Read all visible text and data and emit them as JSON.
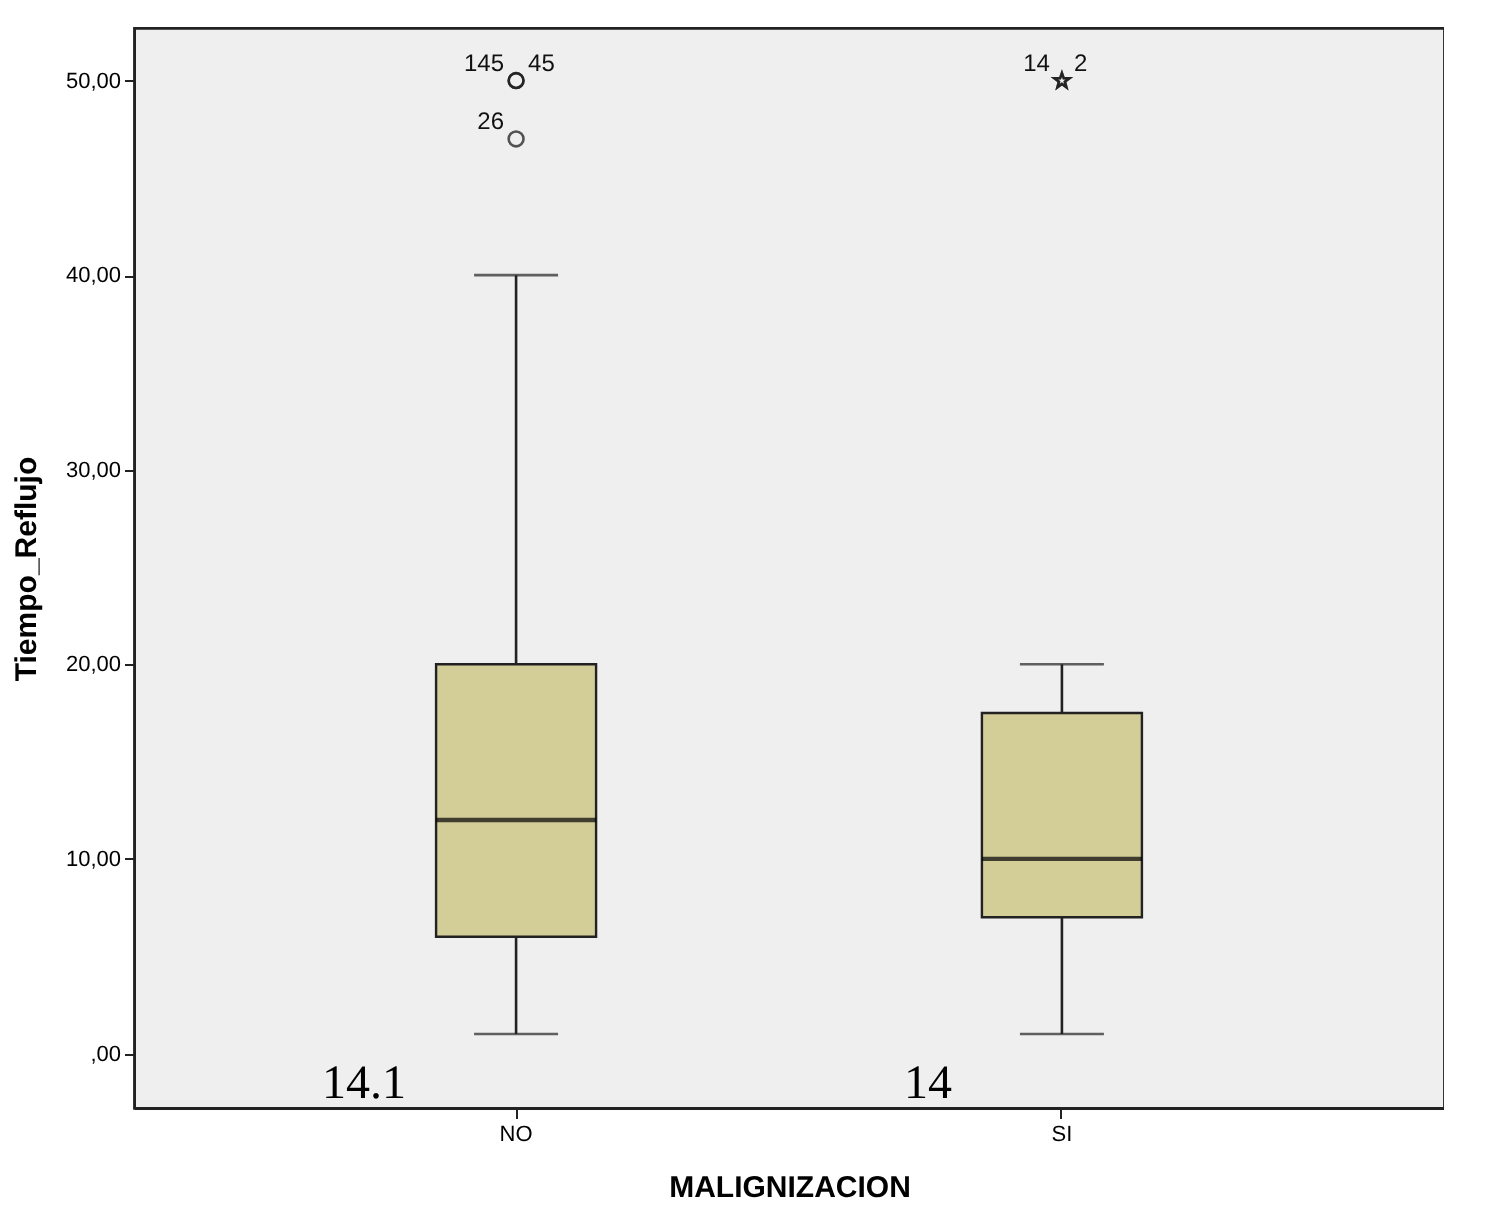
{
  "chart_data": {
    "type": "box",
    "xlabel": "MALIGNIZACION",
    "ylabel": "Tiempo_Reflujo",
    "categories": [
      "NO",
      "SI"
    ],
    "boxes": [
      {
        "low": 1,
        "q1": 6,
        "median": 12,
        "q3": 20,
        "high": 40,
        "outliers": [
          50,
          50,
          47
        ]
      },
      {
        "low": 1,
        "q1": 7,
        "median": 10,
        "q3": 17.5,
        "high": 20,
        "outliers": [
          50,
          50
        ]
      }
    ],
    "color": "#d3cd98",
    "ylim": [
      -2.8,
      52.7
    ],
    "yticks": [
      {
        "value": 0,
        "label": ",00"
      },
      {
        "value": 10,
        "label": "10,00"
      },
      {
        "value": 20,
        "label": "20,00"
      },
      {
        "value": 30,
        "label": "30,00"
      },
      {
        "value": 40,
        "label": "40,00"
      },
      {
        "value": 50,
        "label": "50,00"
      }
    ],
    "grid": false,
    "annotations": [
      "145",
      "45",
      "26",
      "14",
      "2",
      "14.1",
      "14"
    ]
  }
}
